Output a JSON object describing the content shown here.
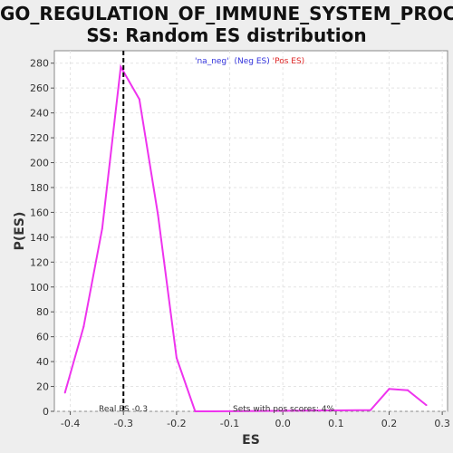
{
  "chart_data": {
    "type": "line",
    "title_line1": "GO_REGULATION_OF_IMMUNE_SYSTEM_PROCE",
    "title_line2": "SS: Random ES distribution",
    "xlabel": "ES",
    "ylabel": "P(ES)",
    "xlim": [
      -0.43,
      0.31
    ],
    "ylim": [
      0,
      290
    ],
    "xticks": [
      -0.4,
      -0.3,
      -0.2,
      -0.1,
      0.0,
      0.1,
      0.2,
      0.3
    ],
    "xtick_labels": [
      "-0.4",
      "-0.3",
      "-0.2",
      "-0.1",
      "0.0",
      "0.1",
      "0.2",
      "0.3"
    ],
    "yticks": [
      0,
      20,
      40,
      60,
      80,
      100,
      120,
      140,
      160,
      180,
      200,
      220,
      240,
      260,
      280
    ],
    "ytick_labels": [
      "0",
      "20",
      "40",
      "60",
      "80",
      "100",
      "120",
      "140",
      "160",
      "180",
      "200",
      "220",
      "240",
      "260",
      "280"
    ],
    "grid": true,
    "series": [
      {
        "color": "#ee33ee",
        "x": [
          -0.41,
          -0.375,
          -0.34,
          -0.305,
          -0.27,
          -0.235,
          -0.2,
          -0.165,
          -0.13,
          0.165,
          0.2,
          0.235,
          0.27
        ],
        "y": [
          15,
          68,
          147,
          277,
          251,
          158,
          43,
          0,
          0,
          1,
          18,
          17,
          5
        ]
      }
    ],
    "real_es": {
      "x": -0.3,
      "label": "Real ES -0.3"
    },
    "annotation": "Sets with pos scores: 4%",
    "legend": {
      "part1": "'na_neg'",
      "part1_color": "#3333dd",
      "part2": "(Neg ES)",
      "part2_color": "#3333dd",
      "part3": "'Pos ES)",
      "part3_color": "#dd2222"
    }
  }
}
